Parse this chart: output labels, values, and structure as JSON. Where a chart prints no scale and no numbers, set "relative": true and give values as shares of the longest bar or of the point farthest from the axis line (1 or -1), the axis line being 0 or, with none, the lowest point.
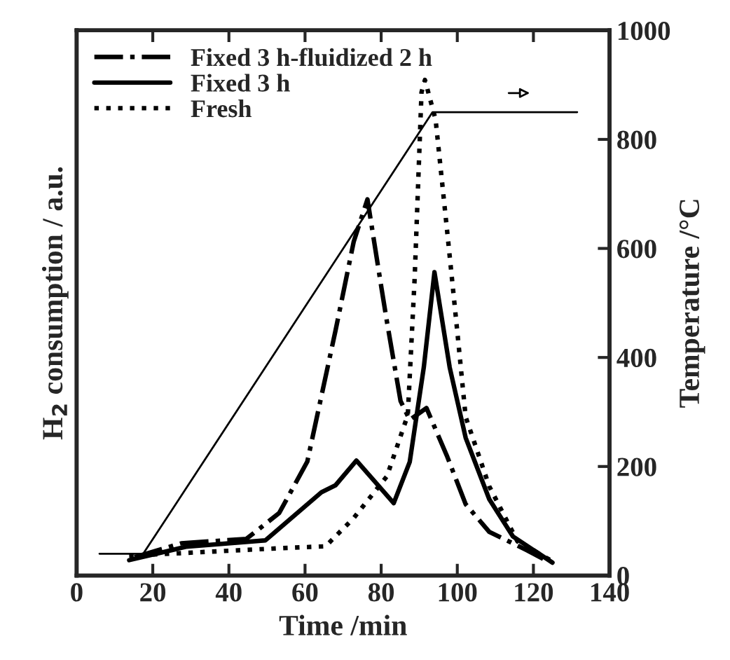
{
  "chart_data": [
    {
      "type": "line",
      "relative": true,
      "xlabel": "Time /min",
      "ylabel": "H$_{2}$ consumption / a.u.",
      "xlim": [
        0,
        140
      ],
      "xticks": [
        0,
        20,
        40,
        60,
        80,
        100,
        120,
        140
      ],
      "legend": "top left",
      "series": [
        {
          "name": "Fixed 3 h-fluidized 2 h",
          "color": "#000000",
          "line_style": "dashdot",
          "x": [
            15.2,
            27.5,
            44.6,
            53.2,
            60.6,
            68,
            72.8,
            76.4,
            80.1,
            81.5,
            85.1,
            87.5,
            91.9,
            97.4,
            102.2,
            108.4,
            118.3,
            123.2
          ],
          "values": [
            0.037,
            0.065,
            0.074,
            0.126,
            0.23,
            0.494,
            0.674,
            0.759,
            0.579,
            0.513,
            0.352,
            0.314,
            0.338,
            0.239,
            0.144,
            0.088,
            0.051,
            0.031
          ]
        },
        {
          "name": "Fixed 3 h",
          "color": "#000000",
          "line_style": "solid",
          "x": [
            13.8,
            28.7,
            49.6,
            64.3,
            68,
            73.5,
            83.3,
            87.5,
            91.2,
            94,
            98,
            102.2,
            108.4,
            114.6,
            125
          ],
          "values": [
            0.031,
            0.058,
            0.071,
            0.168,
            0.182,
            0.232,
            0.146,
            0.229,
            0.42,
            0.612,
            0.42,
            0.278,
            0.154,
            0.079,
            0.026
          ]
        },
        {
          "name": "Fresh",
          "color": "#000000",
          "line_style": "dotted",
          "x": [
            13.8,
            53.2,
            65.4,
            72.8,
            81.5,
            87,
            88.8,
            90.6,
            91.5,
            94.3,
            97.4,
            99.9,
            102.2,
            108.4,
            115.8,
            125.6
          ],
          "values": [
            0.04,
            0.055,
            0.059,
            0.116,
            0.2,
            0.324,
            0.6,
            0.975,
            1,
            0.92,
            0.69,
            0.5,
            0.32,
            0.18,
            0.069,
            0.026
          ]
        }
      ]
    },
    {
      "type": "line",
      "ylabel": "Temperature /°C",
      "xlim": [
        0,
        140
      ],
      "ylim": [
        0,
        1000
      ],
      "yticks": [
        0,
        200,
        400,
        600,
        800,
        1000
      ],
      "tick_labels": "y",
      "series": [
        {
          "color": "#000000",
          "line_style": "solid",
          "x": [
            6,
            17.5,
            93.5,
            131.5
          ],
          "values": [
            40,
            40,
            850,
            850
          ]
        }
      ]
    }
  ]
}
